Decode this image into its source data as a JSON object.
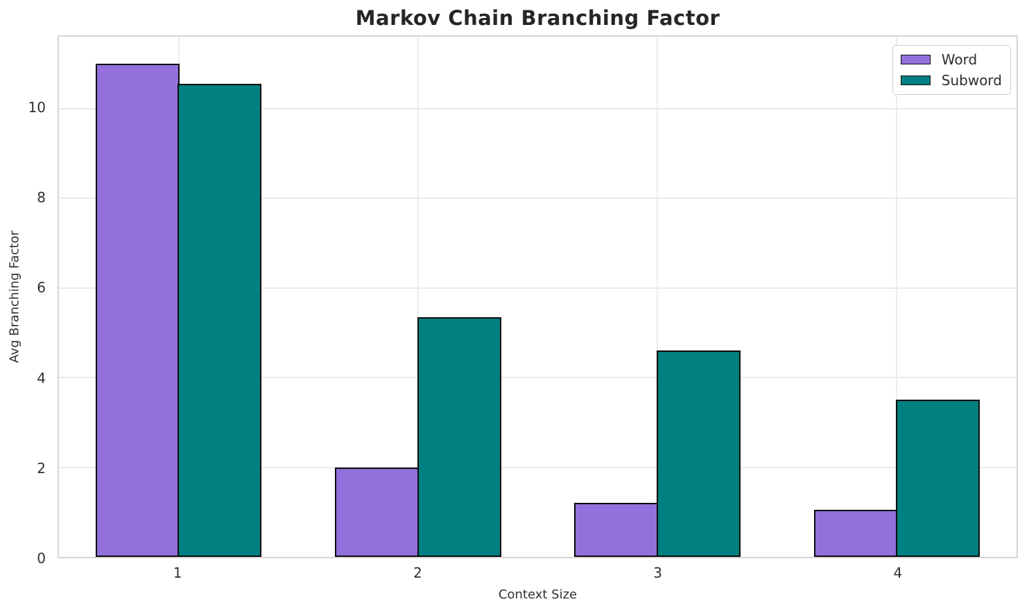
{
  "chart_data": {
    "type": "bar",
    "title": "Markov Chain Branching Factor",
    "xlabel": "Context Size",
    "ylabel": "Avg Branching Factor",
    "categories": [
      "1",
      "2",
      "3",
      "4"
    ],
    "series": [
      {
        "name": "Word",
        "color": "#9370DB",
        "values": [
          11.0,
          2.0,
          1.2,
          1.05
        ]
      },
      {
        "name": "Subword",
        "color": "#008080",
        "values": [
          10.55,
          5.35,
          4.6,
          3.5
        ]
      }
    ],
    "yticks": [
      0,
      2,
      4,
      6,
      8,
      10
    ],
    "ylim": [
      0,
      11.6
    ],
    "grid": true,
    "legend_position": "upper right",
    "bar_edge_color": "#0a0a0a",
    "grid_color": "#e9e9e9",
    "background_color": "#ffffff"
  }
}
